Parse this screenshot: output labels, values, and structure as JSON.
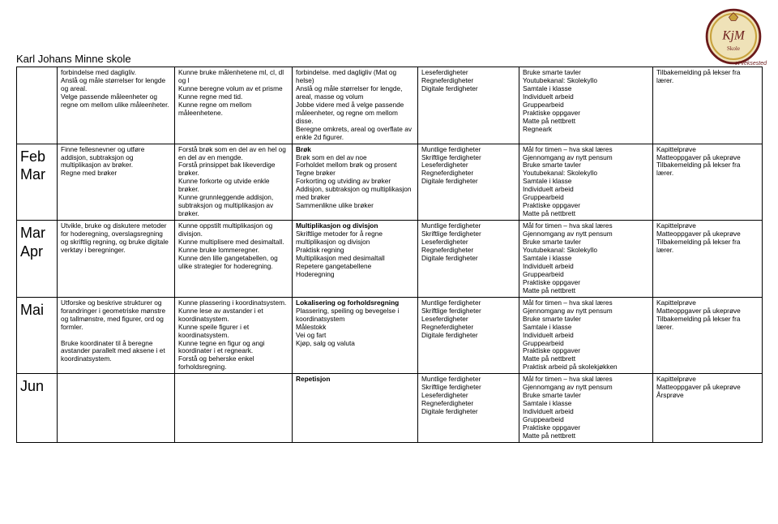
{
  "header": {
    "school": "Karl Johans Minne skole",
    "logo_monogram": "KjM",
    "logo_bottom": "Skole",
    "logo_subtitle": "– et veksested",
    "logo_colors": {
      "rim": "#6b1a1a",
      "gold": "#c8a23c",
      "cream": "#efe2b8"
    }
  },
  "rows": [
    {
      "month": "",
      "cells": [
        "forbindelse med dagligliv.\nAnslå og måle størrelser for lengde og areal.\nVelge passende måleenheter og regne om mellom ulike måleenheter.",
        "Kunne bruke målenhetene ml, cl, dl og l\nKunne beregne volum av et prisme\nKunne regne med tid.\nKunne regne om mellom måleenhetene.",
        "forbindelse. med dagligliv (Mat og helse)\nAnslå og måle størrelser for lengde, areal, masse og volum\nJobbe videre med å velge passende måleenheter, og regne om mellom disse.\nBeregne omkrets, areal og overflate av enkle 2d figurer.",
        "Leseferdigheter\nRegneferdigheter\nDigitale ferdigheter",
        "Bruke smarte tavler\nYoutubekanal: Skolekyllo\nSamtale i klasse\nIndividuelt arbeid\nGruppearbeid\nPraktiske oppgaver\nMatte på nettbrett\nRegneark",
        "Tilbakemelding på lekser fra lærer."
      ]
    },
    {
      "month": "Feb\nMar",
      "cells": [
        "Finne fellesnevner og utføre addisjon, subtraksjon og multiplikasjon av brøker.\nRegne med brøker",
        "Forstå brøk som en del av en hel og en del av en mengde.\nForstå prinsippet bak likeverdige brøker.\nKunne forkorte og utvide enkle brøker.\nKunne grunnleggende addisjon, subtraksjon og multiplikasjon av brøker.",
        "",
        "Muntlige ferdigheter\nSkriftlige ferdigheter\nLeseferdigheter\nRegneferdigheter\nDigitale ferdigheter",
        "Mål for timen – hva skal læres\nGjennomgang av nytt pensum\nBruke smarte tavler\nYoutubekanal: Skolekyllo\nSamtale i klasse\nIndividuelt arbeid\nGruppearbeid\nPraktiske oppgaver\nMatte på nettbrett",
        "Kapittelprøve\nMatteoppgaver på ukeprøve\nTilbakemelding på lekser fra lærer."
      ],
      "rich3": {
        "bold": "Brøk",
        "rest": "\nBrøk som en del av noe\nForholdet mellom brøk og prosent\nTegne brøker\nForkorting og utviding av brøker\nAddisjon, subtraksjon  og multiplikasjon  med brøker\nSammenlikne ulike brøker"
      }
    },
    {
      "month": "Mar\nApr",
      "cells": [
        "Utvikle, bruke og diskutere metoder for hoderegning, overslagsregning og skriftlig regning, og bruke digitale verktøy i beregninger.",
        "Kunne oppstilt multiplikasjon og divisjon.\nKunne multiplisere med desimaltall.\nKunne bruke lommeregner.\nKunne den lille gangetabellen, og ulike strategier for hoderegning.",
        "",
        "Muntlige ferdigheter\nSkriftlige ferdigheter\nLeseferdigheter\nRegneferdigheter\nDigitale ferdigheter",
        "Mål for timen – hva skal læres\nGjennomgang av nytt pensum\nBruke smarte tavler\nYoutubekanal: Skolekyllo\nSamtale i klasse\nIndividuelt arbeid\nGruppearbeid\nPraktiske oppgaver\nMatte på nettbrett",
        "Kapittelprøve\nMatteoppgaver på ukeprøve\nTilbakemelding på lekser fra lærer."
      ],
      "rich3": {
        "bold": "Multiplikasjon og divisjon",
        "rest": "\nSkriftlige metoder for å regne multiplikasjon og divisjon\nPraktisk regning\nMultiplikasjon med desimaltall\nRepetere gangetabellene\nHoderegning"
      }
    },
    {
      "month": "Mai",
      "cells": [
        "Utforske og beskrive strukturer og forandringer i geometriske mønstre og tallmønstre, med figurer, ord og formler.\n\nBruke koordinater til å beregne avstander parallelt med aksene i et koordinatsystem.",
        "Kunne plassering i koordinatsystem.\nKunne lese av avstander i et koordinatsystem.\nKunne speile figurer i et koordinatsystem.\nKunne tegne en figur og angi koordinater i et regneark.\nForstå og beherske enkel forholdsregning.",
        "",
        "Muntlige ferdigheter\nSkriftlige ferdigheter\nLeseferdigheter\nRegneferdigheter\nDigitale ferdigheter",
        "Mål for timen – hva skal læres\nGjennomgang av nytt pensum\nBruke smarte tavler\nSamtale i klasse\nIndividuelt arbeid\nGruppearbeid\nPraktiske oppgaver\nMatte på nettbrett\nPraktisk arbeid på skolekjøkken",
        "Kapittelprøve\nMatteoppgaver på ukeprøve\nTilbakemelding på lekser fra lærer."
      ],
      "rich3": {
        "bold": "Lokalisering og forholdsregning",
        "rest": "\nPlassering, speiling og bevegelse i koordinatsystem\nMålestokk\nVei og fart\nKjøp, salg og valuta"
      }
    },
    {
      "month": "Jun",
      "cells": [
        "",
        "",
        "",
        "Muntlige ferdigheter\nSkriftlige ferdigheter\nLeseferdigheter\nRegneferdigheter\nDigitale ferdigheter",
        "Mål for timen – hva skal læres\nGjennomgang av nytt pensum\nBruke smarte tavler\nSamtale i klasse\nIndividuelt arbeid\nGruppearbeid\nPraktiske oppgaver\nMatte på nettbrett",
        "Kapittelprøve\nMatteoppgaver på ukeprøve\nÅrsprøve"
      ],
      "rich3": {
        "bold": "Repetisjon",
        "rest": ""
      }
    }
  ]
}
